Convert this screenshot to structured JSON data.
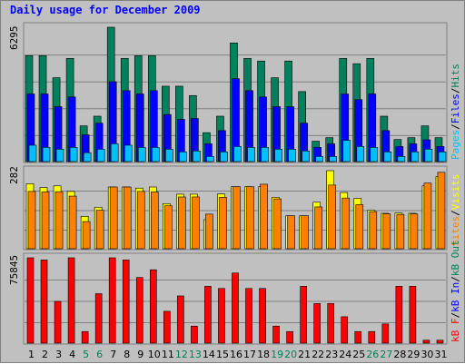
{
  "title": "Daily usage for December 2009",
  "colors": {
    "hits": "#00805c",
    "files": "#0000ff",
    "pages": "#00c0ff",
    "visits": "#ffff00",
    "sites": "#ff8000",
    "kbin": "#ff0000",
    "kbout": "#00805c",
    "weekday_label": "#000000",
    "weekend_label": "#00805c",
    "background": "#c0c0c0"
  },
  "weekend_days": [
    5,
    6,
    12,
    13,
    19,
    20,
    26,
    27
  ],
  "panel1": {
    "ymax_label": "6295",
    "legend": [
      {
        "text": "Pages",
        "color": "#00c0ff"
      },
      {
        "text": "/",
        "color": "#000000"
      },
      {
        "text": "Files",
        "color": "#0000ff"
      },
      {
        "text": "/",
        "color": "#000000"
      },
      {
        "text": "Hits",
        "color": "#00805c"
      }
    ]
  },
  "panel2": {
    "ymax_label": "282",
    "legend": [
      {
        "text": "Sites",
        "color": "#ff8000"
      },
      {
        "text": "/",
        "color": "#000000"
      },
      {
        "text": "Visits",
        "color": "#ffff00"
      }
    ]
  },
  "panel3": {
    "ymax_label": "75845",
    "legend": [
      {
        "text": "kB F",
        "color": "#ff0000"
      },
      {
        "text": "/",
        "color": "#000000"
      },
      {
        "text": "kB In",
        "color": "#0000ff"
      },
      {
        "text": "/",
        "color": "#000000"
      },
      {
        "text": "kB Out",
        "color": "#00805c"
      }
    ]
  },
  "chart_data": {
    "type": "bar",
    "title": "Daily usage for December 2009",
    "categories": [
      "1",
      "2",
      "3",
      "4",
      "5",
      "6",
      "7",
      "8",
      "9",
      "10",
      "11",
      "12",
      "13",
      "14",
      "15",
      "16",
      "17",
      "18",
      "19",
      "20",
      "21",
      "22",
      "23",
      "24",
      "25",
      "26",
      "27",
      "28",
      "29",
      "30",
      "31"
    ],
    "panels": [
      {
        "name": "hits-files-pages",
        "ymax": 6295,
        "ylim": [
          0,
          6295
        ],
        "series": [
          {
            "name": "Hits",
            "values": [
              4962,
              4962,
              3927,
              4837,
              1673,
              2127,
              6295,
              4837,
              4962,
              4962,
              3532,
              3532,
              3094,
              1355,
              2127,
              5559,
              4837,
              4712,
              3928,
              4712,
              3280,
              956,
              1120,
              4837,
              4587,
              4837,
              2127,
              1035,
              1120,
              1673,
              1120
            ]
          },
          {
            "name": "Files",
            "values": [
              3168,
              3168,
              2573,
              3028,
              1253,
              1800,
              3744,
              3324,
              3168,
              3324,
              2205,
              1978,
              2019,
              832,
              1451,
              3883,
              3324,
              3028,
              2573,
              2573,
              1800,
              664,
              832,
              3168,
              2902,
              3168,
              1451,
              706,
              832,
              1020,
              706
            ]
          },
          {
            "name": "Pages",
            "values": [
              767,
              664,
              580,
              664,
              415,
              580,
              834,
              767,
              664,
              664,
              580,
              456,
              497,
              239,
              456,
              706,
              664,
              664,
              580,
              580,
              497,
              239,
              239,
              996,
              706,
              664,
              456,
              239,
              456,
              580,
              456
            ]
          }
        ]
      },
      {
        "name": "visits-sites",
        "ymax": 282,
        "ylim": [
          0,
          282
        ],
        "series": [
          {
            "name": "Visits",
            "values": [
              235,
              221,
              227,
              207,
              117,
              150,
              223,
              223,
              219,
              223,
              163,
              197,
              197,
              105,
              198,
              224,
              224,
              224,
              186,
              119,
              119,
              168,
              282,
              203,
              182,
              139,
              128,
              129,
              128,
              227,
              260
            ]
          },
          {
            "name": "Sites",
            "values": [
              207,
              205,
              206,
              190,
              98,
              139,
              223,
              223,
              207,
              205,
              155,
              187,
              187,
              125,
              186,
              224,
              224,
              233,
              180,
              119,
              119,
              151,
              230,
              183,
              159,
              134,
              126,
              124,
              126,
              237,
              276
            ]
          }
        ]
      },
      {
        "name": "kb-f",
        "ymax": 75845,
        "ylim": [
          0,
          75845
        ],
        "series": [
          {
            "name": "kB F",
            "values": [
              75845,
              73910,
              37105,
              75845,
              10305,
              43914,
              75845,
              73910,
              58345,
              65215,
              28286,
              41978,
              15117,
              50532,
              48597,
              62315,
              48597,
              48597,
              15117,
              10305,
              50532,
              35169,
              35169,
              23474,
              10305,
              10305,
              17052,
              50532,
              50532,
              2615,
              2615
            ]
          }
        ]
      }
    ]
  }
}
